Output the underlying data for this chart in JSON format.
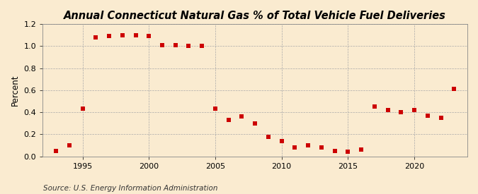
{
  "title": "Annual Connecticut Natural Gas % of Total Vehicle Fuel Deliveries",
  "ylabel": "Percent",
  "source": "Source: U.S. Energy Information Administration",
  "years": [
    1993,
    1994,
    1995,
    1996,
    1997,
    1998,
    1999,
    2000,
    2001,
    2002,
    2003,
    2004,
    2005,
    2006,
    2007,
    2008,
    2009,
    2010,
    2011,
    2012,
    2013,
    2014,
    2015,
    2016,
    2017,
    2018,
    2019,
    2020,
    2021,
    2022,
    2023
  ],
  "values": [
    0.05,
    0.1,
    0.43,
    1.08,
    1.09,
    1.1,
    1.1,
    1.09,
    1.01,
    1.01,
    1.0,
    1.0,
    0.43,
    0.33,
    0.36,
    0.3,
    0.18,
    0.14,
    0.08,
    0.1,
    0.08,
    0.05,
    0.04,
    0.06,
    0.45,
    0.42,
    0.4,
    0.42,
    0.37,
    0.35,
    0.61
  ],
  "xlim": [
    1992,
    2024
  ],
  "ylim": [
    0.0,
    1.2
  ],
  "yticks": [
    0.0,
    0.2,
    0.4,
    0.6,
    0.8,
    1.0,
    1.2
  ],
  "xticks": [
    1995,
    2000,
    2005,
    2010,
    2015,
    2020
  ],
  "marker_color": "#cc0000",
  "marker_size": 4,
  "bg_color": "#faebd0",
  "plot_bg_color": "#faebd0",
  "grid_color": "#aaaaaa",
  "title_fontsize": 10.5,
  "label_fontsize": 8.5,
  "tick_fontsize": 8,
  "source_fontsize": 7.5
}
